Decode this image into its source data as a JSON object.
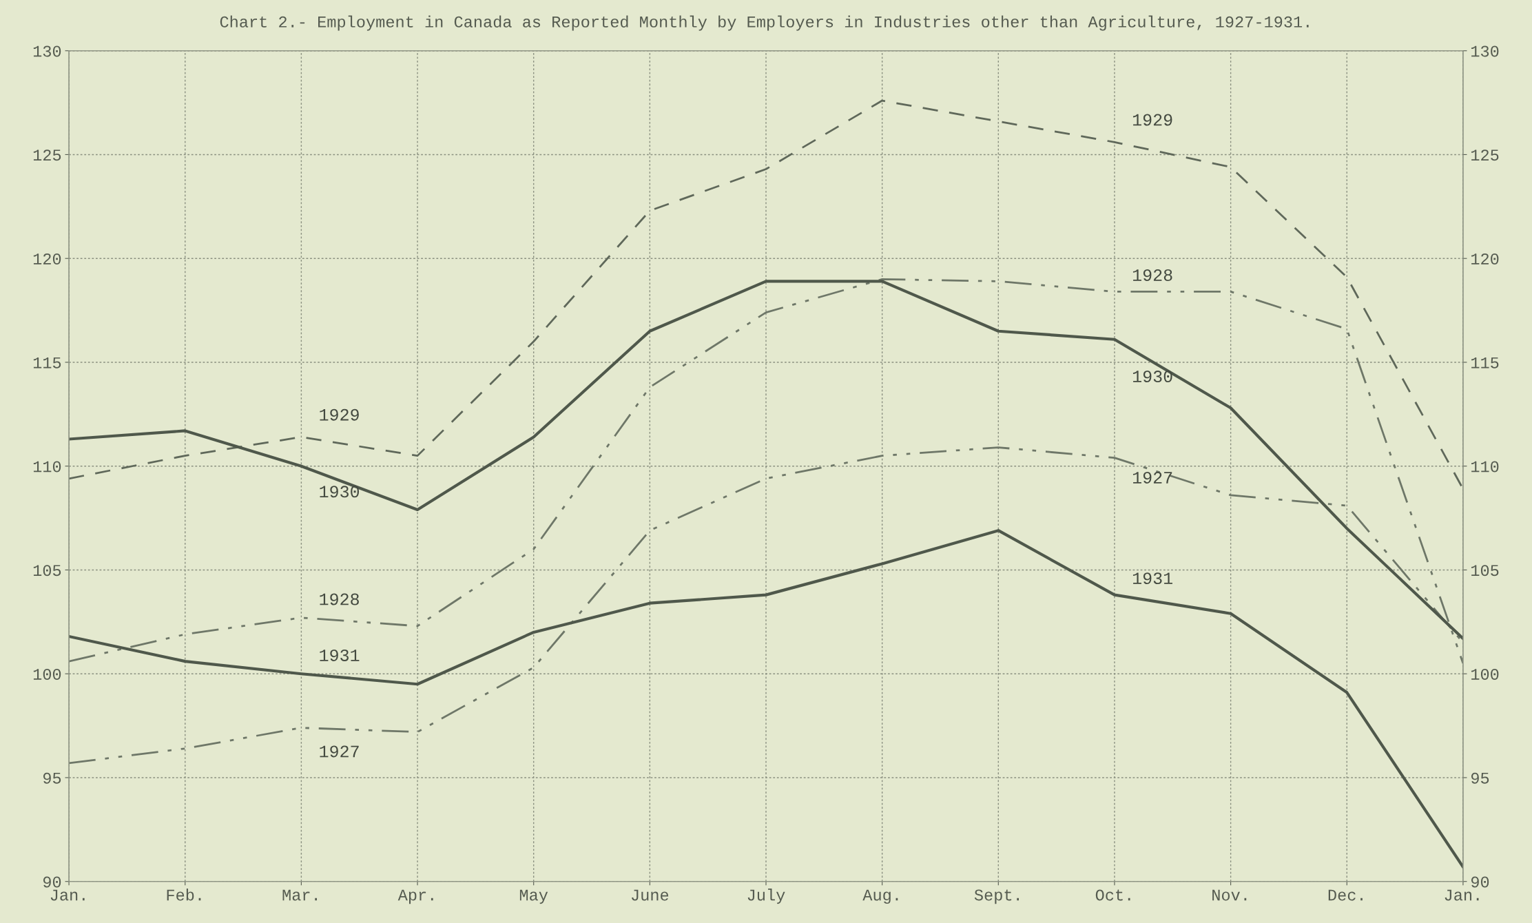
{
  "chart_data": {
    "type": "line",
    "title": "Chart 2.- Employment in Canada as Reported Monthly by Employers in Industries other than Agriculture, 1927-1931.",
    "categories": [
      "Jan.",
      "Feb.",
      "Mar.",
      "Apr.",
      "May",
      "June",
      "July",
      "Aug.",
      "Sept.",
      "Oct.",
      "Nov.",
      "Dec.",
      "Jan."
    ],
    "series": [
      {
        "name": "1927",
        "color": "#6e7768",
        "line_style": "dashdot",
        "values": [
          95.7,
          96.4,
          97.4,
          97.2,
          100.3,
          106.9,
          109.4,
          110.5,
          110.9,
          110.4,
          108.6,
          108.1,
          101.5
        ]
      },
      {
        "name": "1928",
        "color": "#6e7768",
        "line_style": "dashdot",
        "values": [
          100.6,
          101.9,
          102.7,
          102.3,
          106.0,
          113.8,
          117.4,
          119.0,
          118.9,
          118.4,
          118.4,
          116.6,
          100.5
        ]
      },
      {
        "name": "1929",
        "color": "#5f685a",
        "line_style": "dashed",
        "values": [
          109.4,
          110.5,
          111.4,
          110.5,
          116.0,
          122.3,
          124.3,
          127.6,
          126.6,
          125.6,
          124.4,
          119.1,
          108.9
        ]
      },
      {
        "name": "1930",
        "color": "#4f584b",
        "line_style": "solid",
        "values": [
          111.3,
          111.7,
          110.0,
          107.9,
          111.4,
          116.5,
          118.9,
          118.9,
          116.5,
          116.1,
          112.8,
          107.0,
          101.7
        ]
      },
      {
        "name": "1931",
        "color": "#4f584b",
        "line_style": "solid",
        "values": [
          101.8,
          100.6,
          100.0,
          99.5,
          102.0,
          103.4,
          103.8,
          105.3,
          106.9,
          103.8,
          102.9,
          99.1,
          90.7
        ]
      }
    ],
    "ylim": [
      90,
      130
    ],
    "yticks": [
      90,
      95,
      100,
      105,
      110,
      115,
      120,
      125,
      130
    ],
    "y2lim": [
      90,
      130
    ],
    "y2ticks": [
      90,
      95,
      100,
      105,
      110,
      115,
      120,
      125,
      130
    ],
    "grid": true
  }
}
